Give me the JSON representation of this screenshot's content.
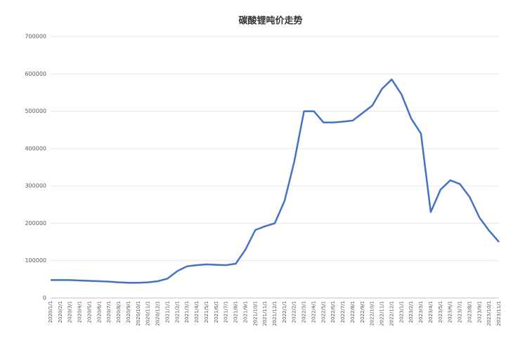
{
  "chart_data": {
    "type": "line",
    "title": "碳酸锂吨价走势",
    "categories": [
      "2020/1/1",
      "2020/2/1",
      "2020/3/1",
      "2020/4/1",
      "2020/5/1",
      "2020/6/1",
      "2020/7/1",
      "2020/8/1",
      "2020/9/1",
      "2020/10/1",
      "2020/11/1",
      "2020/12/1",
      "2021/1/1",
      "2021/2/1",
      "2021/3/1",
      "2021/4/1",
      "2021/5/1",
      "2021/6/1",
      "2021/7/1",
      "2021/8/1",
      "2021/9/1",
      "2021/10/1",
      "2021/11/1",
      "2021/12/1",
      "2022/1/1",
      "2022/2/1",
      "2022/3/1",
      "2022/4/1",
      "2022/5/1",
      "2022/6/1",
      "2022/7/1",
      "2022/8/1",
      "2022/9/1",
      "2022/10/1",
      "2022/11/1",
      "2022/12/1",
      "2023/1/1",
      "2023/2/1",
      "2023/3/1",
      "2023/4/1",
      "2023/5/1",
      "2023/6/1",
      "2023/7/1",
      "2023/8/1",
      "2023/9/1",
      "2023/10/1",
      "2023/11/1"
    ],
    "values": [
      48000,
      48000,
      48000,
      47000,
      46000,
      45000,
      44000,
      42000,
      41000,
      41000,
      42000,
      45000,
      52000,
      72000,
      85000,
      88000,
      90000,
      89000,
      88000,
      92000,
      130000,
      182000,
      192000,
      200000,
      260000,
      365000,
      500000,
      500000,
      470000,
      470000,
      472000,
      475000,
      495000,
      515000,
      560000,
      585000,
      545000,
      480000,
      440000,
      230000,
      290000,
      315000,
      305000,
      270000,
      215000,
      180000,
      150000
    ],
    "color": "#4472c4",
    "ylim": [
      0,
      700000
    ],
    "yticks": [
      0,
      100000,
      200000,
      300000,
      400000,
      500000,
      600000,
      700000
    ],
    "grid": true
  }
}
